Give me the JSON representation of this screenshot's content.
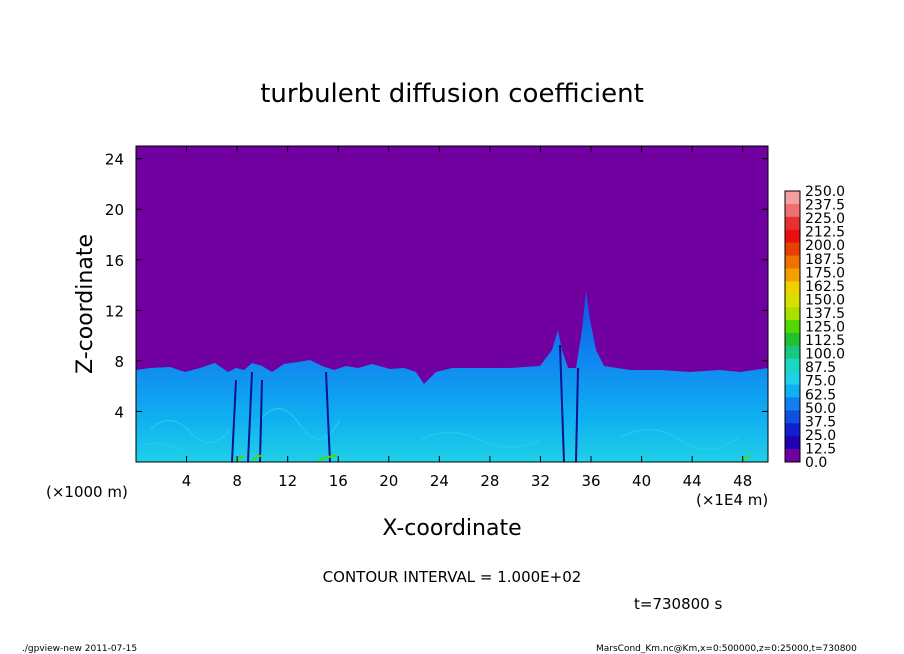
{
  "chart_data": {
    "type": "heatmap",
    "title": "turbulent diffusion coefficient",
    "xlabel": "X-coordinate",
    "ylabel": "Z-coordinate",
    "x_unit_label": "(×1E4 m)",
    "y_unit_label": "(×1000 m)",
    "xlim": [
      0,
      50
    ],
    "ylim": [
      0,
      25
    ],
    "x_ticks": [
      4,
      8,
      12,
      16,
      20,
      24,
      28,
      32,
      36,
      40,
      44,
      48
    ],
    "y_ticks": [
      4,
      8,
      12,
      16,
      20,
      24
    ],
    "colorbar": {
      "levels": [
        "250.0",
        "237.5",
        "225.0",
        "212.5",
        "200.0",
        "187.5",
        "175.0",
        "162.5",
        "150.0",
        "137.5",
        "125.0",
        "112.5",
        "100.0",
        "87.5",
        "75.0",
        "62.5",
        "50.0",
        "37.5",
        "25.0",
        "12.5",
        "0.0"
      ],
      "colors": [
        "#f4a0a0",
        "#f07070",
        "#e83030",
        "#e81010",
        "#e84000",
        "#f07000",
        "#f0a000",
        "#f0d000",
        "#d8e000",
        "#a8e000",
        "#50d800",
        "#20c030",
        "#18c880",
        "#18d8c0",
        "#20d0e8",
        "#10b0f0",
        "#1080f0",
        "#1050e0",
        "#1020d0",
        "#2000b0",
        "#7000a0"
      ]
    },
    "background_color": "#7000a0",
    "annotation": "CONTOUR INTERVAL = 1.000E+02",
    "time_label": "t=730800 s"
  },
  "footer": {
    "left": "./gpview-new  2011-07-15",
    "right": "MarsCond_Km.nc@Km,x=0:500000,z=0:25000,t=730800"
  }
}
